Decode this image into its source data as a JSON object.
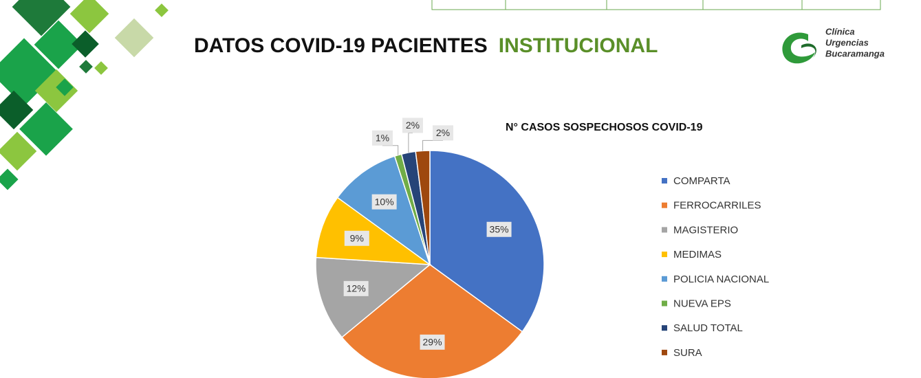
{
  "header": {
    "title": "DATOS COVID-19 PACIENTES",
    "highlight": "INSTITUCIONAL"
  },
  "logo": {
    "lines": [
      "Clínica",
      "Urgencias",
      "Bucaramanga"
    ]
  },
  "chart_data": {
    "type": "pie",
    "title": "N° CASOS SOSPECHOSOS COVID-19",
    "categories": [
      "COMPARTA",
      "FERROCARRILES",
      "MAGISTERIO",
      "MEDIMAS",
      "POLICIA NACIONAL",
      "NUEVA EPS",
      "SALUD TOTAL",
      "SURA"
    ],
    "values": [
      35,
      29,
      12,
      9,
      10,
      1,
      2,
      2
    ],
    "value_labels": [
      "35%",
      "29%",
      "12%",
      "9%",
      "10%",
      "1%",
      "2%",
      "2%"
    ],
    "colors": [
      "#4472c4",
      "#ed7d31",
      "#a5a5a5",
      "#ffc000",
      "#5b9bd5",
      "#70ad47",
      "#264478",
      "#9e480e"
    ],
    "legend": "right"
  }
}
